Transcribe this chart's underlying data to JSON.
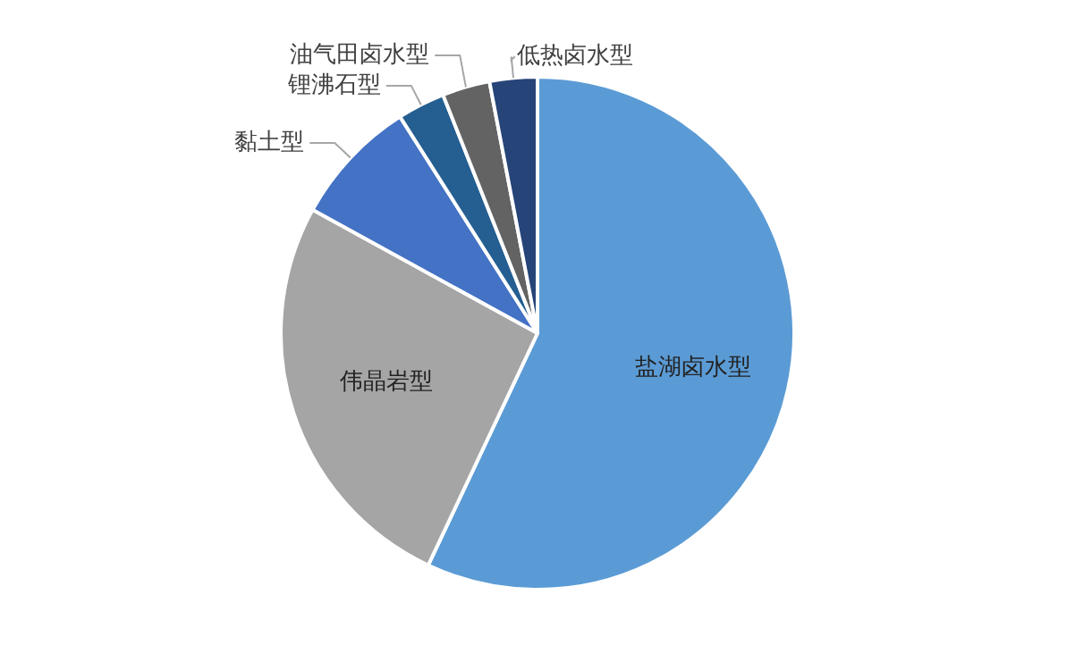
{
  "chart_data": {
    "type": "pie",
    "categories": [
      "盐湖卤水型",
      "伟晶岩型",
      "黏土型",
      "锂沸石型",
      "油气田卤水型",
      "低热卤水型"
    ],
    "values": [
      57,
      26,
      8,
      3,
      3,
      3
    ],
    "colors": [
      "#5b9bd5",
      "#a5a5a5",
      "#4472c4",
      "#255e91",
      "#636363",
      "#264478"
    ],
    "legend": false
  }
}
